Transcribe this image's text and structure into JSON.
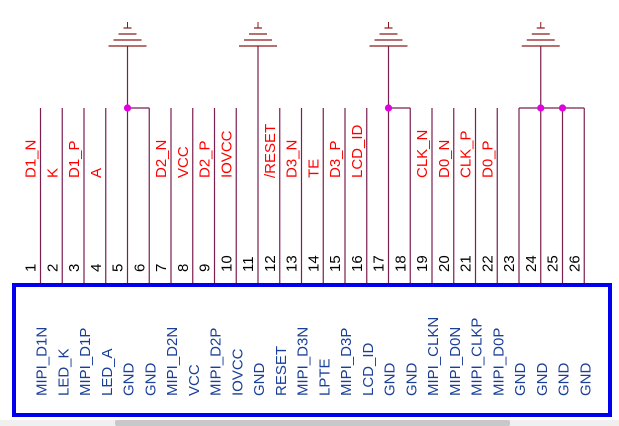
{
  "schematic": {
    "net_labels": [
      "D1_N",
      "K",
      "D1_P",
      "A",
      "",
      "",
      "D2_N",
      "VCC",
      "D2_P",
      "IOVCC",
      "",
      "/RESET",
      "D3_N",
      "TE",
      "D3_P",
      "LCD_ID",
      "",
      "",
      "CLK_N",
      "D0_N",
      "CLK_P",
      "D0_P",
      "",
      "",
      "",
      ""
    ],
    "pin_numbers": [
      "1",
      "2",
      "3",
      "4",
      "5",
      "6",
      "7",
      "8",
      "9",
      "10",
      "11",
      "12",
      "13",
      "14",
      "15",
      "16",
      "17",
      "18",
      "19",
      "20",
      "21",
      "22",
      "23",
      "24",
      "25",
      "26"
    ],
    "pin_names": [
      "MIPI_D1N",
      "LED_K",
      "MIPI_D1P",
      "LED_A",
      "GND",
      "GND",
      "MIPI_D2N",
      "VCC",
      "MIPI_D2P",
      "IOVCC",
      "GND",
      "RESET",
      "MIPI_D3N",
      "LPTE",
      "MIPI_D3P",
      "LCD_ID",
      "GND",
      "GND",
      "MIPI_CLKN",
      "MIPI_D0N",
      "MIPI_CLKP",
      "MIPI_D0P",
      "GND",
      "GND",
      "GND",
      "GND"
    ],
    "ground_groups": [
      {
        "pins": [
          5,
          6
        ]
      },
      {
        "pins": [
          11
        ]
      },
      {
        "pins": [
          17,
          18
        ]
      },
      {
        "pins": [
          23,
          24,
          25,
          26
        ]
      }
    ],
    "colors": {
      "wire": "#7a1f4f",
      "net_label": "#ff0000",
      "junction": "#e000e0",
      "body_border": "#0000ee",
      "pin_name": "#1a3f99",
      "pin_number": "#000000",
      "ground": "#8b1a1a"
    }
  }
}
